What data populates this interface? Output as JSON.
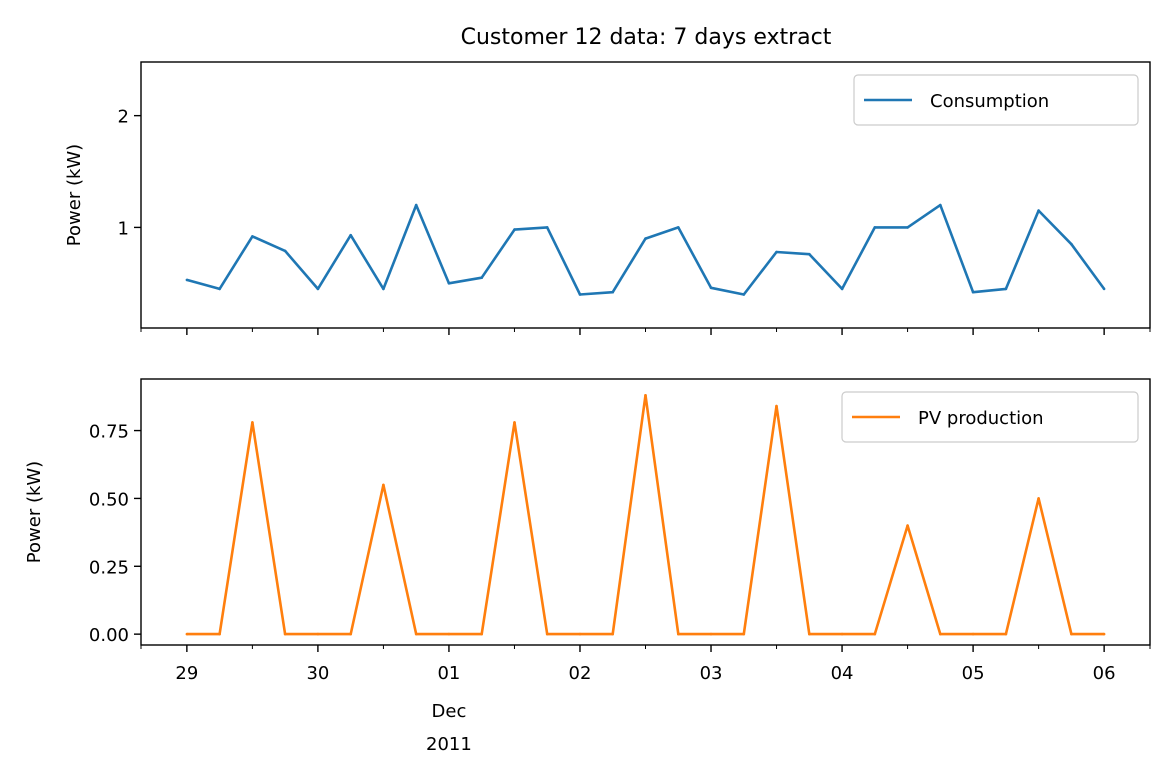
{
  "title": "Customer 12 data: 7 days extract",
  "chart_data": [
    {
      "type": "line",
      "ylabel": "Power (kW)",
      "ylim": [
        0.1,
        2.48
      ],
      "yticks": [
        {
          "value": 1,
          "label": "1"
        },
        {
          "value": 2,
          "label": "2"
        }
      ],
      "legend": {
        "placement": "top-right"
      },
      "series": [
        {
          "name": "Consumption",
          "color": "#1f77b4",
          "x": [
            "2011-11-29T00:00",
            "2011-11-29T06:00",
            "2011-11-29T12:00",
            "2011-11-29T18:00",
            "2011-11-30T00:00",
            "2011-11-30T06:00",
            "2011-11-30T12:00",
            "2011-11-30T18:00",
            "2011-12-01T00:00",
            "2011-12-01T06:00",
            "2011-12-01T12:00",
            "2011-12-01T18:00",
            "2011-12-02T00:00",
            "2011-12-02T06:00",
            "2011-12-02T12:00",
            "2011-12-02T18:00",
            "2011-12-03T00:00",
            "2011-12-03T06:00",
            "2011-12-03T12:00",
            "2011-12-03T18:00",
            "2011-12-04T00:00",
            "2011-12-04T06:00",
            "2011-12-04T12:00",
            "2011-12-04T18:00",
            "2011-12-05T00:00",
            "2011-12-05T06:00",
            "2011-12-05T12:00",
            "2011-12-05T18:00",
            "2011-12-06T00:00"
          ],
          "values": [
            0.53,
            0.45,
            0.92,
            0.79,
            0.45,
            0.93,
            0.45,
            1.2,
            0.5,
            0.55,
            0.98,
            1.0,
            0.4,
            0.42,
            0.9,
            1.0,
            0.46,
            0.4,
            0.78,
            0.76,
            0.45,
            1.0,
            1.0,
            1.2,
            0.42,
            0.45,
            1.15,
            0.85,
            0.45
          ]
        }
      ]
    },
    {
      "type": "line",
      "ylabel": "Power (kW)",
      "ylim": [
        -0.04,
        0.94
      ],
      "yticks": [
        {
          "value": 0,
          "label": "0.00"
        },
        {
          "value": 0.25,
          "label": "0.25"
        },
        {
          "value": 0.5,
          "label": "0.50"
        },
        {
          "value": 0.75,
          "label": "0.75"
        }
      ],
      "xticks": [
        {
          "value": "2011-11-29",
          "label": "29"
        },
        {
          "value": "2011-11-30",
          "label": "30"
        },
        {
          "value": "2011-12-01",
          "label": "01",
          "sub": [
            "Dec",
            "2011"
          ]
        },
        {
          "value": "2011-12-02",
          "label": "02"
        },
        {
          "value": "2011-12-03",
          "label": "03"
        },
        {
          "value": "2011-12-04",
          "label": "04"
        },
        {
          "value": "2011-12-05",
          "label": "05"
        },
        {
          "value": "2011-12-06",
          "label": "06"
        }
      ],
      "xlim": [
        "2011-11-28T15:36",
        "2011-12-06T08:24"
      ],
      "legend": {
        "placement": "top-right"
      },
      "series": [
        {
          "name": "PV production",
          "color": "#ff7f0e",
          "x": [
            "2011-11-29T00:00",
            "2011-11-29T06:00",
            "2011-11-29T12:00",
            "2011-11-29T18:00",
            "2011-11-30T00:00",
            "2011-11-30T06:00",
            "2011-11-30T12:00",
            "2011-11-30T18:00",
            "2011-12-01T00:00",
            "2011-12-01T06:00",
            "2011-12-01T12:00",
            "2011-12-01T18:00",
            "2011-12-02T00:00",
            "2011-12-02T06:00",
            "2011-12-02T12:00",
            "2011-12-02T18:00",
            "2011-12-03T00:00",
            "2011-12-03T06:00",
            "2011-12-03T12:00",
            "2011-12-03T18:00",
            "2011-12-04T00:00",
            "2011-12-04T06:00",
            "2011-12-04T12:00",
            "2011-12-04T18:00",
            "2011-12-05T00:00",
            "2011-12-05T06:00",
            "2011-12-05T12:00",
            "2011-12-05T18:00",
            "2011-12-06T00:00"
          ],
          "values": [
            0.0,
            0.0,
            0.78,
            0.0,
            0.0,
            0.0,
            0.55,
            0.0,
            0.0,
            0.0,
            0.78,
            0.0,
            0.0,
            0.0,
            0.88,
            0.0,
            0.0,
            0.0,
            0.84,
            0.0,
            0.0,
            0.0,
            0.4,
            0.0,
            0.0,
            0.0,
            0.5,
            0.0,
            0.0
          ]
        }
      ]
    }
  ]
}
